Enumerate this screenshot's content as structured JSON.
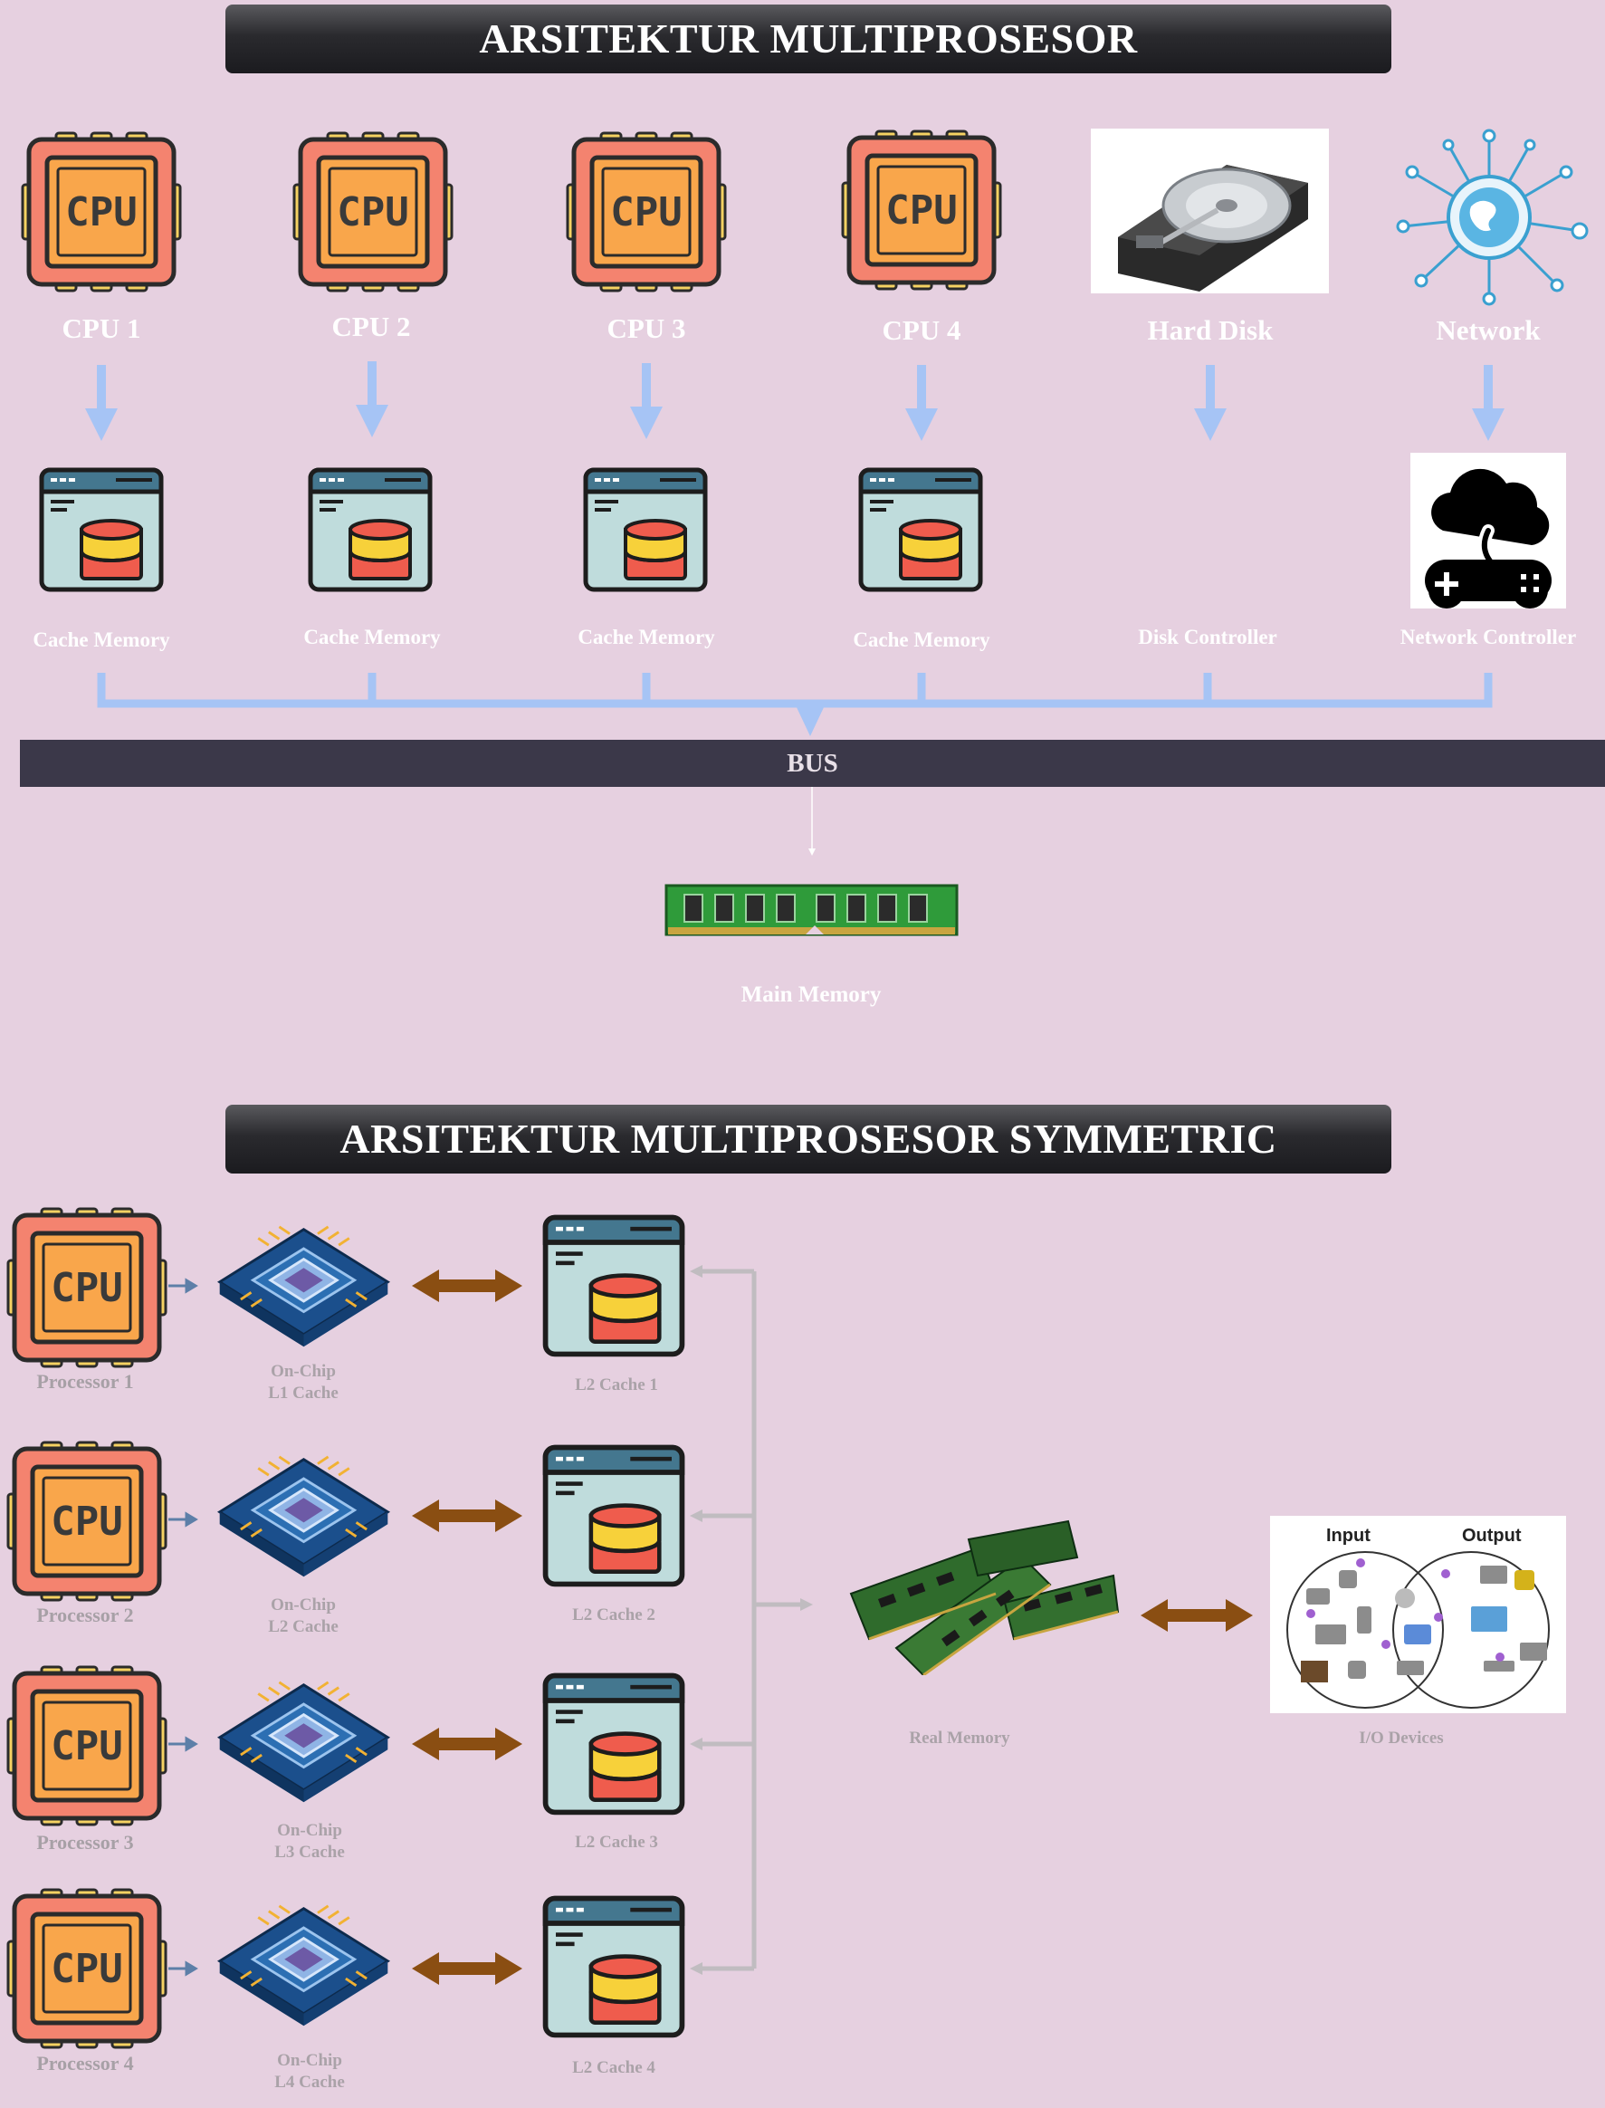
{
  "section1": {
    "title": "ARSITEKTUR MULTIPROSESOR",
    "top_labels": [
      "CPU 1",
      "CPU 2",
      "CPU 3",
      "CPU 4",
      "Hard Disk",
      "Network"
    ],
    "second_labels": [
      "Cache Memory",
      "Cache Memory",
      "Cache Memory",
      "Cache Memory",
      "Disk Controller",
      "Network Controller"
    ],
    "cpu_icon_text": "CPU",
    "bus_label": "BUS",
    "main_memory_label": "Main Memory"
  },
  "section2": {
    "title": "ARSITEKTUR MULTIPROSESOR SYMMETRIC",
    "processors": [
      "Processor 1",
      "Processor 2",
      "Processor 3",
      "Processor 4"
    ],
    "onchip": [
      {
        "line1": "On-Chip",
        "line2": "L1 Cache"
      },
      {
        "line1": "On-Chip",
        "line2": "L2 Cache"
      },
      {
        "line1": "On-Chip",
        "line2": "L3 Cache"
      },
      {
        "line1": "On-Chip",
        "line2": "L4 Cache"
      }
    ],
    "l2_caches": [
      "L2 Cache 1",
      "L2 Cache 2",
      "L2 Cache 3",
      "L2 Cache 4"
    ],
    "real_memory_label": "Real Memory",
    "io_label": "I/O Devices",
    "io_input": "Input",
    "io_output": "Output"
  },
  "colors": {
    "background": "#e6d0e0",
    "cpu_outer": "#f4836f",
    "cpu_inner": "#f9a64b",
    "cache_body": "#bfdcdc",
    "cache_bar": "#44778f",
    "db_top": "#f7d13a",
    "db_bottom": "#ef5c4d",
    "blue_arrow": "#a6c4f5",
    "brown_arrow": "#8a4e12",
    "bus": "#3b3849"
  }
}
